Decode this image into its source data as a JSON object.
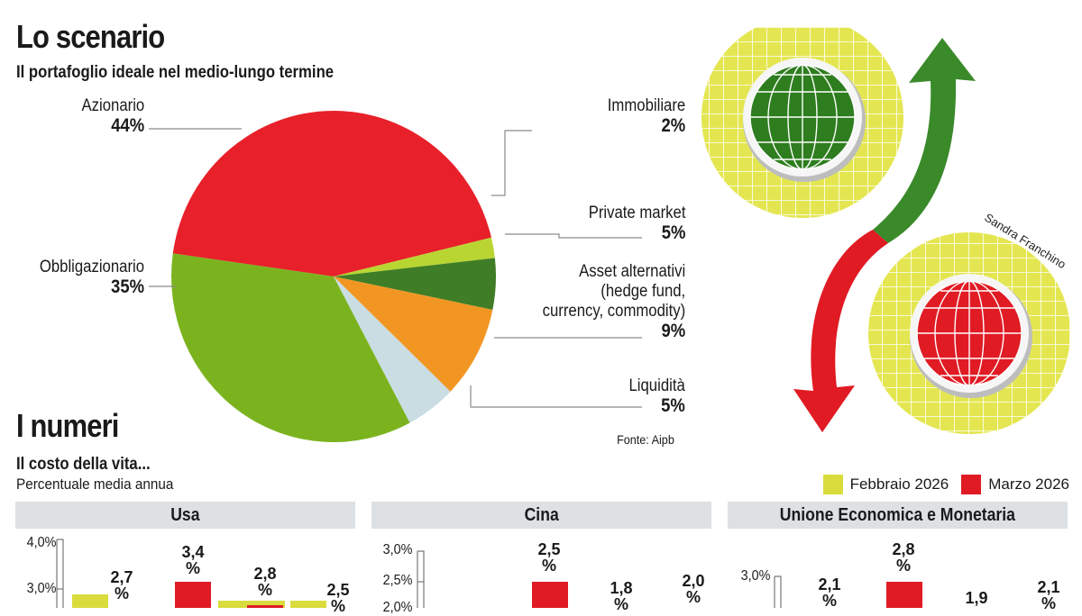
{
  "header": {
    "title": "Lo scenario",
    "subtitle": "Il portafoglio ideale nel medio-lungo termine"
  },
  "chart_data": [
    {
      "type": "pie",
      "title": "Il portafoglio ideale nel medio-lungo termine",
      "slices": [
        {
          "label": "Azionario",
          "value": 44,
          "display": "44%",
          "color": "#e8202a"
        },
        {
          "label": "Immobiliare",
          "value": 2,
          "display": "2%",
          "color": "#b9d532"
        },
        {
          "label": "Private market",
          "value": 5,
          "display": "5%",
          "color": "#3f7d26"
        },
        {
          "label": "Asset alternativi",
          "label_lines": [
            "(hedge fund,",
            "currency, commodity)"
          ],
          "value": 9,
          "display": "9%",
          "color": "#f29623"
        },
        {
          "label": "Liquidità",
          "value": 5,
          "display": "5%",
          "color": "#c9dde3"
        },
        {
          "label": "Obbligazionario",
          "value": 35,
          "display": "35%",
          "color": "#7bb31f"
        }
      ],
      "source": "Fonte: Aipb"
    },
    {
      "type": "bar",
      "panel": "Usa",
      "yticks": [
        "4,0%",
        "3,0%"
      ],
      "bars": [
        {
          "label_top": "2,7",
          "label_bottom": "%",
          "value": 2.7,
          "color": "#d9dc3c"
        },
        {
          "label_top": "3,4",
          "label_bottom": "%",
          "value": 3.4,
          "color": "#e01b24"
        },
        {
          "label_top": "2,8",
          "label_bottom": "%",
          "value": 2.8,
          "color": "#d9dc3c"
        },
        {
          "label_top": "2,5",
          "label_bottom": "%",
          "value": 2.5,
          "color": "#d9dc3c"
        }
      ]
    },
    {
      "type": "bar",
      "panel": "Cina",
      "yticks": [
        "3,0%",
        "2,5%",
        "2,0%"
      ],
      "bars": [
        {
          "label_top": "2,5",
          "label_bottom": "%",
          "value": 2.5,
          "color": "#e01b24"
        },
        {
          "label_top": "1,8",
          "label_bottom": "%",
          "value": 1.8,
          "color": "#d9dc3c"
        },
        {
          "label_top": "2,0",
          "label_bottom": "%",
          "value": 2.0,
          "color": "#d9dc3c"
        }
      ]
    },
    {
      "type": "bar",
      "panel": "Unione Economica e Monetaria",
      "yticks": [
        "3,0%"
      ],
      "bars": [
        {
          "label_top": "2,1",
          "label_bottom": "%",
          "value": 2.1,
          "color": "#d9dc3c"
        },
        {
          "label_top": "2,8",
          "label_bottom": "%",
          "value": 2.8,
          "color": "#e01b24"
        },
        {
          "label_top": "1,9",
          "label_bottom": "",
          "value": 1.9,
          "color": "#d9dc3c"
        },
        {
          "label_top": "2,1",
          "label_bottom": "%",
          "value": 2.1,
          "color": "#d9dc3c"
        }
      ]
    }
  ],
  "numbers": {
    "title": "I numeri",
    "subtitle": "Il costo della vita...",
    "caption": "Percentuale media annua",
    "legend": [
      {
        "label": "Febbraio 2026",
        "color": "#d9dc3c"
      },
      {
        "label": "Marzo 2026",
        "color": "#e01b24"
      }
    ]
  },
  "illustration": {
    "credit": "Sandra Franchino",
    "colors": {
      "ring": "#e4e651",
      "grid": "#ffffff",
      "globe_green": "#2e7d1f",
      "globe_red": "#e01b24",
      "arrow_green": "#3a8a2a",
      "arrow_red": "#e01b24"
    }
  }
}
